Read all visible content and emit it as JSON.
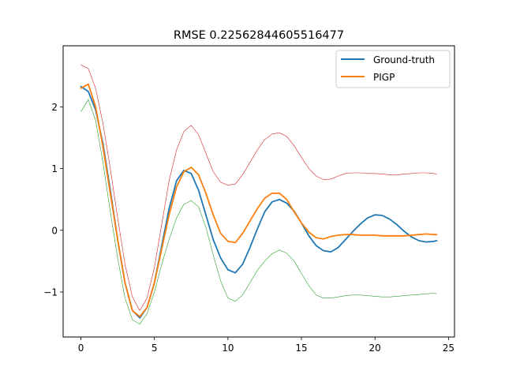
{
  "chart_data": {
    "type": "line",
    "title": "RMSE 0.22562844605516477",
    "xlabel": "",
    "ylabel": "",
    "xlim": [
      -1.21,
      25.41
    ],
    "ylim": [
      -1.73,
      2.99
    ],
    "x_ticks": [
      0,
      5,
      10,
      15,
      20,
      25
    ],
    "y_ticks": [
      -1,
      0,
      1,
      2
    ],
    "x_tick_labels": [
      "0",
      "5",
      "10",
      "15",
      "20",
      "25"
    ],
    "y_tick_labels": [
      "−1",
      "0",
      "1",
      "2"
    ],
    "grid": false,
    "legend_position": "top-right",
    "x": [
      0,
      0.5,
      1,
      1.5,
      2,
      2.5,
      3,
      3.5,
      4,
      4.5,
      5,
      5.5,
      6,
      6.5,
      7,
      7.5,
      8,
      8.5,
      9,
      9.5,
      10,
      10.5,
      11,
      11.5,
      12,
      12.5,
      13,
      13.5,
      14,
      14.5,
      15,
      15.5,
      16,
      16.5,
      17,
      17.5,
      18,
      18.5,
      19,
      19.5,
      20,
      20.5,
      21,
      21.5,
      22,
      22.5,
      23,
      23.5,
      24,
      24.2
    ],
    "series": [
      {
        "name": "Ground-truth",
        "color": "#1f77b4",
        "values": [
          2.33,
          2.25,
          1.95,
          1.4,
          0.65,
          -0.15,
          -0.85,
          -1.3,
          -1.42,
          -1.25,
          -0.85,
          -0.25,
          0.35,
          0.8,
          0.97,
          0.92,
          0.65,
          0.25,
          -0.15,
          -0.45,
          -0.64,
          -0.69,
          -0.55,
          -0.28,
          0.02,
          0.3,
          0.46,
          0.5,
          0.44,
          0.31,
          0.12,
          -0.09,
          -0.25,
          -0.33,
          -0.35,
          -0.28,
          -0.15,
          -0.02,
          0.1,
          0.2,
          0.25,
          0.24,
          0.18,
          0.09,
          -0.02,
          -0.11,
          -0.17,
          -0.19,
          -0.18,
          -0.17
        ]
      },
      {
        "name": "PIGP",
        "color": "#ff7f0e",
        "values": [
          2.3,
          2.37,
          2.0,
          1.35,
          0.6,
          -0.15,
          -0.85,
          -1.3,
          -1.4,
          -1.25,
          -0.85,
          -0.3,
          0.25,
          0.7,
          0.95,
          1.02,
          0.9,
          0.6,
          0.25,
          -0.05,
          -0.18,
          -0.2,
          -0.05,
          0.15,
          0.35,
          0.52,
          0.6,
          0.6,
          0.5,
          0.3,
          0.12,
          -0.03,
          -0.12,
          -0.14,
          -0.1,
          -0.08,
          -0.07,
          -0.07,
          -0.08,
          -0.08,
          -0.08,
          -0.09,
          -0.09,
          -0.09,
          -0.09,
          -0.08,
          -0.07,
          -0.06,
          -0.07,
          -0.07
        ]
      }
    ],
    "bands": [
      {
        "color": "#d62728",
        "values": [
          2.68,
          2.62,
          2.3,
          1.73,
          1.0,
          0.2,
          -0.55,
          -1.08,
          -1.3,
          -1.1,
          -0.6,
          0.1,
          0.8,
          1.3,
          1.6,
          1.7,
          1.55,
          1.25,
          0.95,
          0.78,
          0.73,
          0.75,
          0.9,
          1.1,
          1.3,
          1.47,
          1.56,
          1.58,
          1.52,
          1.37,
          1.18,
          1.0,
          0.88,
          0.82,
          0.83,
          0.88,
          0.92,
          0.93,
          0.93,
          0.92,
          0.92,
          0.91,
          0.9,
          0.9,
          0.91,
          0.92,
          0.93,
          0.93,
          0.92,
          0.91
        ]
      },
      {
        "color": "#2ca02c",
        "values": [
          1.92,
          2.12,
          1.78,
          1.1,
          0.3,
          -0.45,
          -1.1,
          -1.45,
          -1.52,
          -1.35,
          -1.0,
          -0.55,
          -0.15,
          0.2,
          0.42,
          0.48,
          0.38,
          0.05,
          -0.4,
          -0.82,
          -1.1,
          -1.15,
          -1.05,
          -0.85,
          -0.65,
          -0.5,
          -0.38,
          -0.32,
          -0.37,
          -0.5,
          -0.7,
          -0.9,
          -1.05,
          -1.1,
          -1.1,
          -1.08,
          -1.06,
          -1.05,
          -1.05,
          -1.06,
          -1.07,
          -1.08,
          -1.08,
          -1.07,
          -1.06,
          -1.05,
          -1.04,
          -1.03,
          -1.02,
          -1.03
        ]
      }
    ]
  }
}
